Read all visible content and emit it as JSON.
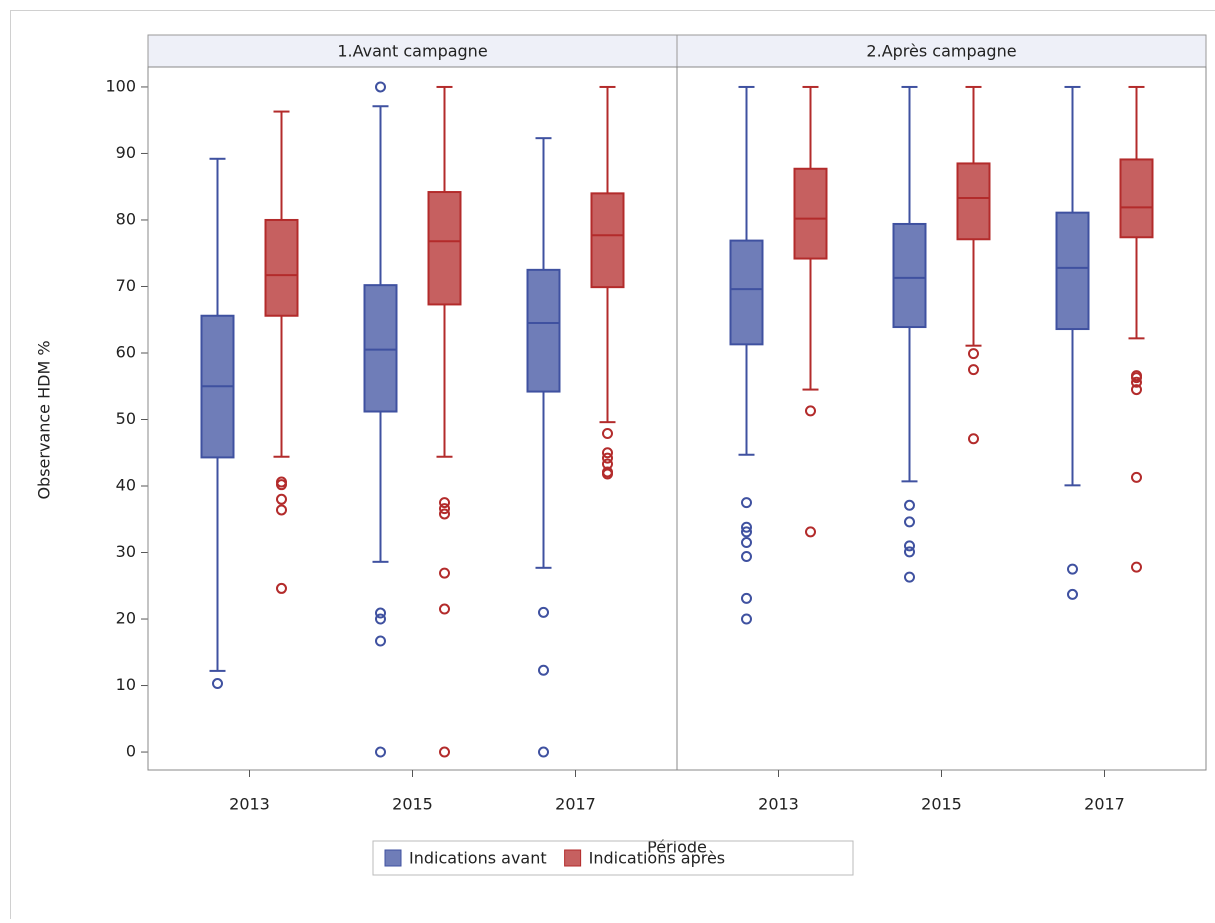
{
  "chart_data": {
    "type": "box",
    "y_label": "Observance HDM %",
    "x_label": "Période",
    "ylim": [
      -2.7,
      103
    ],
    "yticks": [
      0,
      10,
      20,
      30,
      40,
      50,
      60,
      70,
      80,
      90,
      100
    ],
    "categories": [
      "2013",
      "2015",
      "2017"
    ],
    "series": [
      {
        "name": "Indications avant",
        "color": "#3f51a0"
      },
      {
        "name": "Indications après",
        "color": "#b32b2b"
      }
    ],
    "panels": [
      {
        "title": "1.Avant campagne",
        "values": [
          {
            "min": [
              12.2,
              28.6,
              27.7
            ],
            "q1": [
              44.3,
              51.2,
              54.2
            ],
            "median": [
              55,
              60.5,
              64.5
            ],
            "q3": [
              65.6,
              70.2,
              72.5
            ],
            "max": [
              89.2,
              97.1,
              92.3
            ],
            "outliers": [
              [
                10.3
              ],
              [
                100,
                20.9,
                20,
                16.7,
                0
              ],
              [
                21,
                12.3,
                0
              ]
            ]
          },
          {
            "min": [
              44.4,
              44.4,
              49.6
            ],
            "q1": [
              65.6,
              67.3,
              69.9
            ],
            "median": [
              71.7,
              76.8,
              77.7
            ],
            "q3": [
              80,
              84.2,
              84
            ],
            "max": [
              96.3,
              100,
              100
            ],
            "outliers": [
              [
                40.6,
                40.2,
                38,
                36.4,
                24.6
              ],
              [
                37.5,
                36.6,
                35.8,
                26.9,
                21.5,
                0
              ],
              [
                47.9,
                45,
                44.2,
                43.3,
                42.1,
                41.8
              ]
            ]
          }
        ]
      },
      {
        "title": "2.Après campagne",
        "values": [
          {
            "min": [
              44.7,
              40.7,
              40.1
            ],
            "q1": [
              61.3,
              63.9,
              63.6
            ],
            "median": [
              69.6,
              71.3,
              72.8
            ],
            "q3": [
              76.9,
              79.4,
              81.1
            ],
            "max": [
              100,
              100,
              100
            ],
            "outliers": [
              [
                37.5,
                33.8,
                33.1,
                31.5,
                29.4,
                23.1,
                20
              ],
              [
                37.1,
                34.6,
                31,
                30.1,
                26.3
              ],
              [
                27.5,
                23.7
              ]
            ]
          },
          {
            "min": [
              54.5,
              61.1,
              62.2
            ],
            "q1": [
              74.2,
              77.1,
              77.4
            ],
            "median": [
              80.2,
              83.3,
              81.9
            ],
            "q3": [
              87.7,
              88.5,
              89.1
            ],
            "max": [
              100,
              100,
              100
            ],
            "outliers": [
              [
                51.3,
                33.1
              ],
              [
                59.9,
                57.5,
                47.1
              ],
              [
                56.6,
                56.3,
                55.6,
                54.5,
                41.3,
                27.8
              ]
            ]
          }
        ]
      }
    ]
  }
}
